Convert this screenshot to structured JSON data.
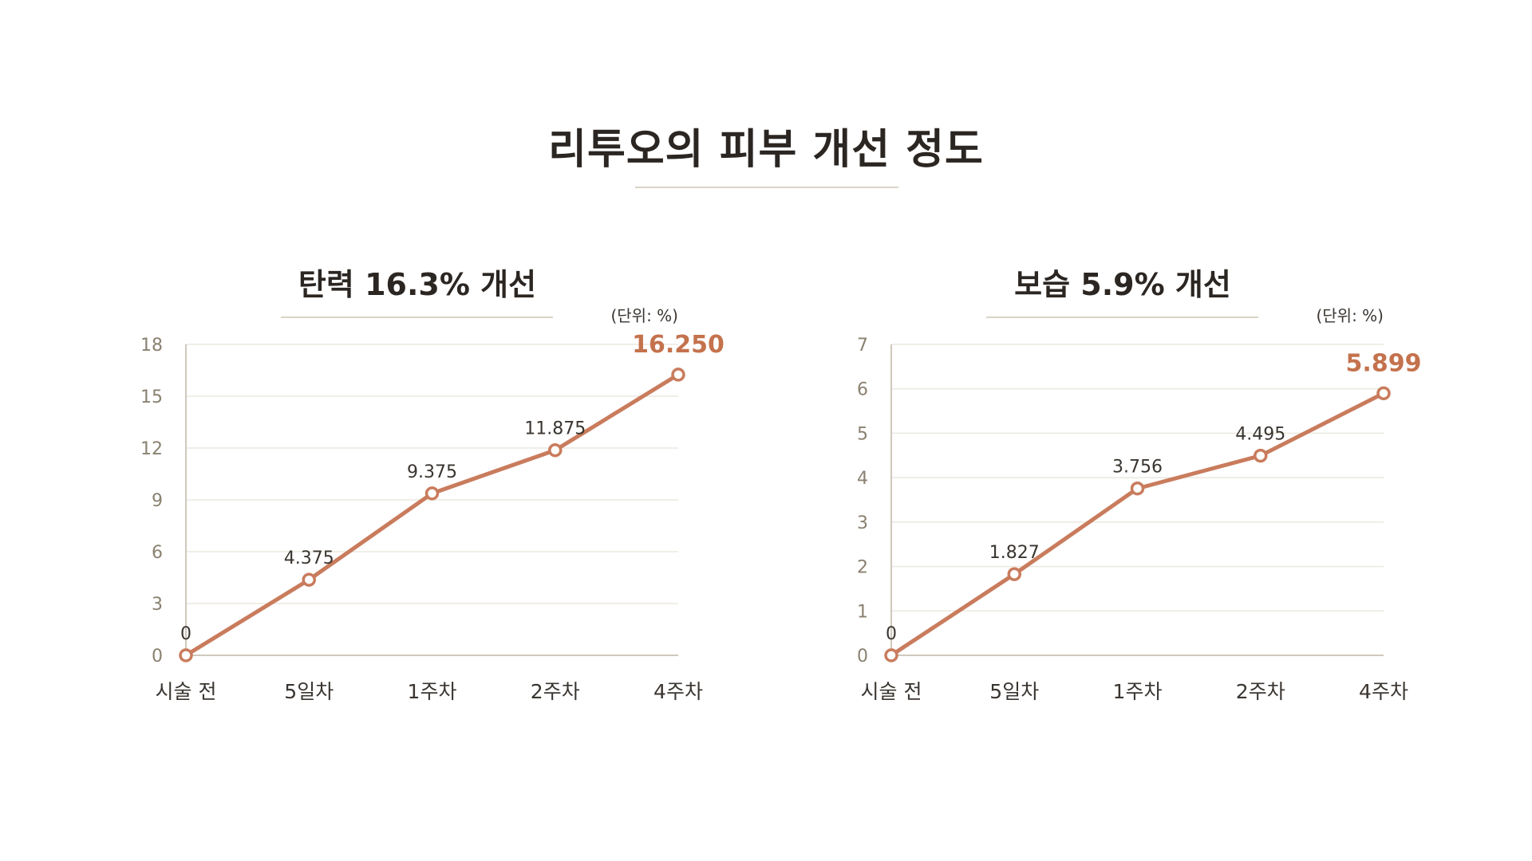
{
  "page": {
    "title": "리투오의 피부 개선 정도"
  },
  "colors": {
    "line": "#c97c5d",
    "highlight": "#c4724d",
    "grid": "#ece8df",
    "rule": "#d9d4c8"
  },
  "chart_data": [
    {
      "type": "line",
      "title": "탄력 16.3% 개선",
      "unit_label": "(단위: %)",
      "categories": [
        "시술 전",
        "5일차",
        "1주차",
        "2주차",
        "4주차"
      ],
      "values": [
        0,
        4.375,
        9.375,
        11.875,
        16.25
      ],
      "value_labels": [
        "0",
        "4.375",
        "9.375",
        "11.875",
        "16.250"
      ],
      "ylim": [
        0,
        18
      ],
      "yticks": [
        0,
        3,
        6,
        9,
        12,
        15,
        18
      ],
      "grid": true,
      "highlight_last": true
    },
    {
      "type": "line",
      "title": "보습 5.9% 개선",
      "unit_label": "(단위: %)",
      "categories": [
        "시술 전",
        "5일차",
        "1주차",
        "2주차",
        "4주차"
      ],
      "values": [
        0,
        1.827,
        3.756,
        4.495,
        5.899
      ],
      "value_labels": [
        "0",
        "1.827",
        "3.756",
        "4.495",
        "5.899"
      ],
      "ylim": [
        0,
        7
      ],
      "yticks": [
        0,
        1,
        2,
        3,
        4,
        5,
        6,
        7
      ],
      "grid": true,
      "highlight_last": true
    }
  ]
}
